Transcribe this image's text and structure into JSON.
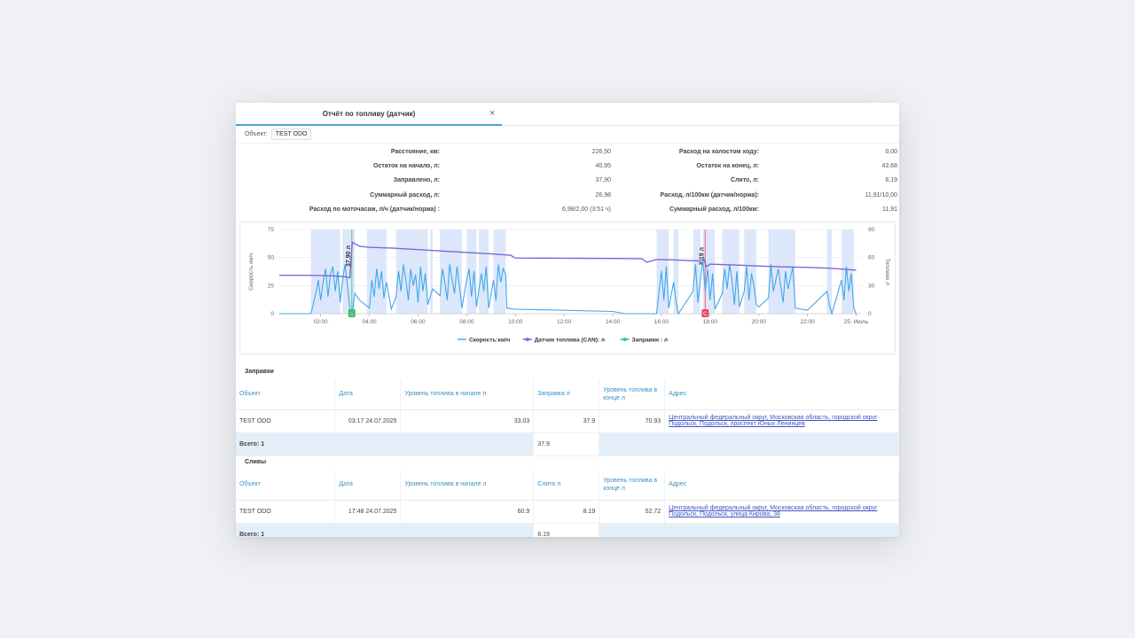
{
  "window": {
    "tab_title": "Отчёт по топливу (датчик)",
    "close_glyph": "×",
    "object_label": "Объект:",
    "object_value": "TEST ODO"
  },
  "summary": {
    "left": [
      {
        "label": "Расстояние, км:",
        "value": "226,50"
      },
      {
        "label": "Остаток на начало, л:",
        "value": "40,95"
      },
      {
        "label": "Заправлено, л:",
        "value": "37,90"
      },
      {
        "label": "Суммарный расход, л:",
        "value": "26,98"
      },
      {
        "label": "Расход по моточасам, л/ч (датчик/норма) :",
        "value": "6,98/2,00 (3:51 ч)"
      }
    ],
    "right": [
      {
        "label": "Расход на холостом ходу:",
        "value": "0,00"
      },
      {
        "label": "Остаток на конец, л:",
        "value": "43,68"
      },
      {
        "label": "Слито, л:",
        "value": "8,19"
      },
      {
        "label": "Расход, л/100км (датчик/норма):",
        "value": "11,91/10,00"
      },
      {
        "label": "Суммарный расход, л/100км:",
        "value": "11,91"
      }
    ]
  },
  "chart_data": {
    "type": "line",
    "x_ticks": [
      "02:00",
      "04:00",
      "06:00",
      "08:00",
      "10:00",
      "12:00",
      "14:00",
      "16:00",
      "18:00",
      "20:00",
      "22:00",
      "25. Июль"
    ],
    "x_hours": [
      2,
      4,
      6,
      8,
      10,
      12,
      14,
      16,
      18,
      20,
      22,
      24
    ],
    "xlim": [
      0.3,
      24.2
    ],
    "y_left": {
      "label": "Скорость км/ч",
      "ticks": [
        0,
        25,
        50,
        75
      ],
      "ylim": [
        0,
        75
      ]
    },
    "y_right": {
      "label": "Топливо л",
      "ticks": [
        0,
        30,
        60,
        90
      ],
      "ylim": [
        0,
        90
      ]
    },
    "legend": [
      {
        "name": "Скорость:км/ч",
        "color": "#5ab2ea"
      },
      {
        "name": "Датчик топлива (CAN): л",
        "color": "#7b68d6"
      },
      {
        "name": "Заправки : л",
        "color": "#2ecc71"
      }
    ],
    "events": [
      {
        "type": "refuel",
        "hour": 3.28,
        "label": "37.90 л",
        "marker": "З",
        "color": "#3fbf5a"
      },
      {
        "type": "drain",
        "hour": 17.8,
        "label": "8.19 л",
        "marker": "С",
        "color": "#e84a5a"
      }
    ],
    "motion_bands": [
      [
        1.6,
        2.8
      ],
      [
        2.9,
        3.4
      ],
      [
        3.9,
        4.7
      ],
      [
        5.1,
        6.4
      ],
      [
        6.5,
        6.6
      ],
      [
        6.9,
        7.8
      ],
      [
        8.0,
        8.4
      ],
      [
        8.5,
        8.9
      ],
      [
        9.1,
        9.6
      ],
      [
        15.8,
        16.3
      ],
      [
        16.5,
        16.7
      ],
      [
        17.3,
        17.6
      ],
      [
        17.7,
        18.2
      ],
      [
        18.5,
        19.2
      ],
      [
        19.4,
        19.9
      ],
      [
        20.4,
        21.5
      ],
      [
        22.8,
        23.0
      ],
      [
        23.4,
        23.9
      ]
    ],
    "fuel_series": {
      "name": "Датчик топлива (CAN): л",
      "x": [
        0.3,
        1.5,
        2.5,
        3.0,
        3.2,
        3.3,
        3.6,
        4.0,
        5.0,
        6.0,
        7.0,
        8.0,
        9.0,
        9.8,
        10.0,
        12.0,
        14.0,
        15.2,
        15.4,
        15.8,
        16.5,
        17.5,
        17.75,
        17.85,
        18.0,
        19.0,
        20.0,
        21.0,
        22.0,
        23.0,
        24.0
      ],
      "y": [
        41,
        41,
        40.5,
        39.5,
        38.5,
        76.5,
        72,
        71,
        70,
        68.5,
        67,
        65.5,
        64,
        62.5,
        59.5,
        59.3,
        59,
        58.8,
        55,
        58,
        57.5,
        56.5,
        58,
        50,
        53,
        52,
        51,
        50,
        49.5,
        48.5,
        46.5
      ]
    },
    "speed_series": {
      "name": "Скорость:км/ч",
      "x": [
        0.3,
        1.6,
        1.8,
        1.9,
        2.0,
        2.1,
        2.2,
        2.3,
        2.4,
        2.5,
        2.6,
        2.7,
        2.8,
        2.9,
        3.0,
        3.1,
        3.2,
        3.3,
        3.4,
        3.6,
        4.0,
        4.1,
        4.2,
        4.3,
        4.4,
        4.5,
        4.6,
        4.7,
        4.9,
        5.1,
        5.2,
        5.3,
        5.4,
        5.5,
        5.6,
        5.7,
        5.8,
        5.9,
        6.0,
        6.1,
        6.2,
        6.3,
        6.4,
        6.6,
        6.9,
        7.0,
        7.1,
        7.2,
        7.3,
        7.4,
        7.5,
        7.6,
        7.7,
        7.8,
        8.0,
        8.1,
        8.2,
        8.3,
        8.4,
        8.6,
        8.7,
        8.8,
        8.9,
        9.1,
        9.2,
        9.3,
        9.4,
        9.5,
        9.6,
        9.65,
        10.0,
        12.0,
        14.0,
        14.5,
        15.8,
        16.0,
        16.1,
        16.2,
        16.3,
        16.5,
        16.6,
        16.7,
        17.3,
        17.4,
        17.5,
        17.6,
        17.7,
        17.8,
        17.9,
        18.0,
        18.1,
        18.2,
        18.5,
        18.6,
        18.7,
        18.8,
        18.9,
        19.0,
        19.1,
        19.2,
        19.4,
        19.5,
        19.6,
        19.7,
        19.8,
        19.9,
        20.0,
        20.4,
        20.5,
        20.6,
        20.8,
        21.0,
        21.1,
        21.2,
        21.4,
        21.5,
        22.0,
        22.8,
        22.9,
        23.0,
        23.4,
        23.5,
        23.6,
        23.7,
        23.8,
        23.9,
        24.0
      ],
      "y": [
        0,
        0,
        18,
        30,
        12,
        28,
        40,
        15,
        35,
        42,
        20,
        38,
        10,
        30,
        44,
        25,
        5,
        0,
        18,
        12,
        5,
        30,
        15,
        40,
        22,
        38,
        14,
        28,
        4,
        15,
        38,
        20,
        44,
        30,
        12,
        40,
        25,
        35,
        10,
        42,
        20,
        36,
        8,
        22,
        16,
        40,
        28,
        12,
        44,
        30,
        18,
        42,
        25,
        5,
        30,
        40,
        15,
        38,
        6,
        36,
        20,
        42,
        5,
        30,
        12,
        44,
        28,
        40,
        35,
        5,
        4,
        3,
        2,
        0,
        0,
        38,
        12,
        42,
        5,
        28,
        10,
        0,
        20,
        44,
        10,
        30,
        48,
        20,
        40,
        12,
        36,
        4,
        18,
        40,
        22,
        44,
        30,
        8,
        38,
        6,
        20,
        42,
        12,
        36,
        25,
        8,
        6,
        14,
        44,
        20,
        40,
        10,
        38,
        22,
        42,
        5,
        3,
        20,
        8,
        0,
        30,
        12,
        42,
        20,
        36,
        5,
        0
      ]
    }
  },
  "refuels": {
    "title": "Заправки",
    "headers": [
      "Объект",
      "Дата",
      "Уровень топлива в начале л",
      "Заправка л",
      "Уровень топлива в конце л",
      "Адрес"
    ],
    "rows": [
      {
        "object": "TEST ODO",
        "date": "03:17 24.07.2025",
        "start": "33.03",
        "amount": "37.9",
        "end": "70.93",
        "address": "Центральный федеральный округ, Московская область, городской округ Подольск, Подольск, проспект Юных Ленинцев"
      }
    ],
    "total_label": "Всего: 1",
    "total_value": "37.9"
  },
  "drains": {
    "title": "Сливы",
    "headers": [
      "Объект",
      "Дата",
      "Уровень топлива в начале л",
      "Слито л",
      "Уровень топлива в конце л",
      "Адрес"
    ],
    "rows": [
      {
        "object": "TEST ODO",
        "date": "17:48 24.07.2025",
        "start": "60.9",
        "amount": "8.19",
        "end": "52.72",
        "address": "Центральный федеральный округ, Московская область, городской округ Подольск, Подольск, улица Кирова, 38"
      }
    ],
    "total_label": "Всего: 1",
    "total_value": "8.19"
  }
}
